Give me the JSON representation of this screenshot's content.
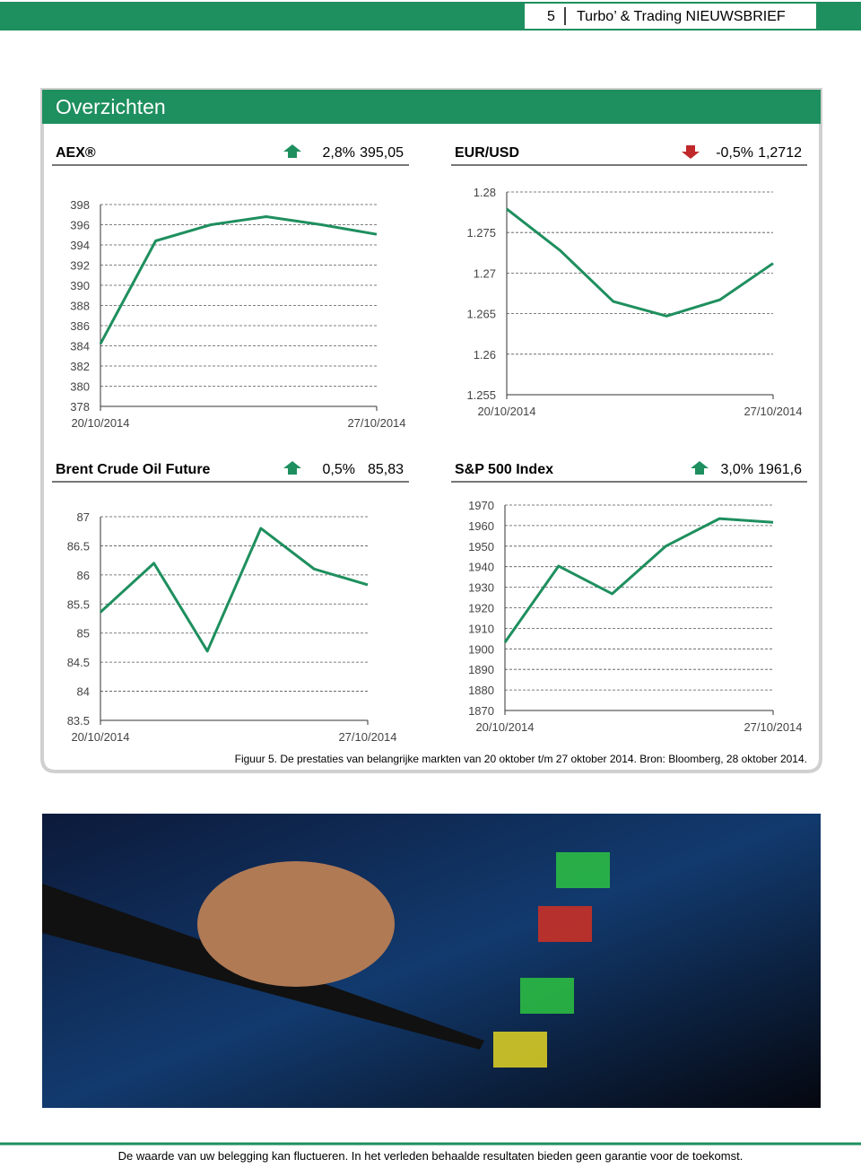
{
  "page": {
    "page_number": "5",
    "newsletter": "Turbo’ & Trading NIEUWSBRIEF",
    "panel_title": "Overzichten",
    "caption": "Figuur 5. De prestaties van belangrijke markten van 20 oktober t/m 27 oktober 2014. Bron: Bloomberg, 28 oktober 2014.",
    "footer": "De waarde van uw belegging kan fluctueren. In het verleden behaalde resultaten bieden geen garantie voor de toekomst."
  },
  "chart_data": [
    {
      "type": "line",
      "title": "AEX®",
      "change": "2,8%",
      "price": "395,05",
      "direction": "up",
      "color": "#1e8f5e",
      "grid": true,
      "categories": [
        "20/10/2014",
        null,
        null,
        null,
        null,
        "27/10/2014"
      ],
      "values": [
        384.2,
        394.4,
        396.0,
        396.8,
        396.0,
        395.05
      ],
      "ylim": [
        378,
        398
      ],
      "yticks": [
        378,
        380,
        382,
        384,
        386,
        388,
        390,
        392,
        394,
        396,
        398
      ]
    },
    {
      "type": "line",
      "title": "EUR/USD",
      "change": "-0,5%",
      "price": "1,2712",
      "direction": "down",
      "color": "#1e8f5e",
      "grid": true,
      "categories": [
        "20/10/2014",
        null,
        null,
        null,
        null,
        "27/10/2014"
      ],
      "values": [
        1.2779,
        1.2728,
        1.2665,
        1.2647,
        1.2667,
        1.2712
      ],
      "ylim": [
        1.255,
        1.28
      ],
      "yticks": [
        1.255,
        1.26,
        1.265,
        1.27,
        1.275,
        1.28
      ]
    },
    {
      "type": "line",
      "title": "Brent Crude Oil Future",
      "change": "0,5%",
      "price": "85,83",
      "direction": "up",
      "color": "#1e8f5e",
      "grid": true,
      "categories": [
        "20/10/2014",
        null,
        null,
        null,
        null,
        "27/10/2014"
      ],
      "values": [
        85.36,
        86.2,
        84.69,
        86.8,
        86.1,
        85.83
      ],
      "ylim": [
        83.5,
        87
      ],
      "yticks": [
        83.5,
        84,
        84.5,
        85,
        85.5,
        86,
        86.5,
        87
      ]
    },
    {
      "type": "line",
      "title": "S&P 500 Index",
      "change": "3,0%",
      "price": "1961,6",
      "direction": "up",
      "color": "#1e8f5e",
      "grid": true,
      "categories": [
        "20/10/2014",
        null,
        null,
        null,
        null,
        "27/10/2014"
      ],
      "values": [
        1903.2,
        1940.3,
        1926.8,
        1950,
        1963.4,
        1961.6
      ],
      "ylim": [
        1870,
        1970
      ],
      "yticks": [
        1870,
        1880,
        1890,
        1900,
        1910,
        1920,
        1930,
        1940,
        1950,
        1960,
        1970
      ]
    }
  ]
}
